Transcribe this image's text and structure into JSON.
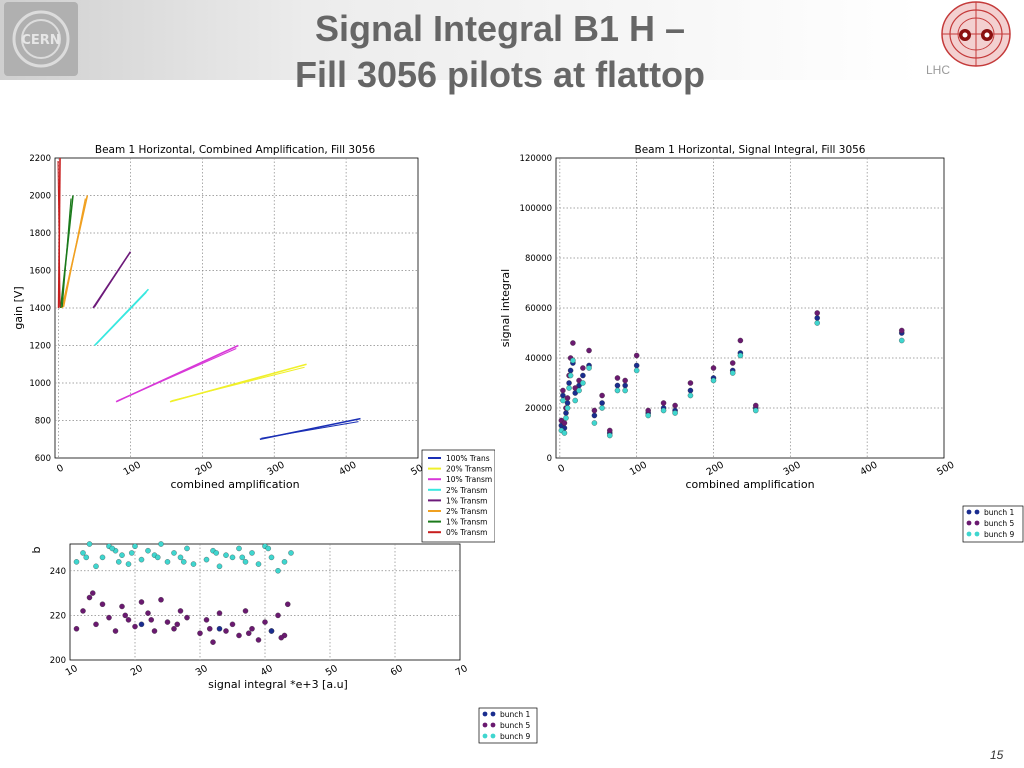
{
  "slide": {
    "title_line1": "Signal Integral B1 H –",
    "title_line2": "Fill 3056 pilots at flattop",
    "page_number": "15",
    "logos": {
      "left": "CERN",
      "right": "LHC"
    }
  },
  "colors": {
    "bunch1": "#1a2d8f",
    "bunch5": "#6a1a70",
    "bunch9": "#3fd6cf",
    "tr100": "#1a2fb5",
    "tr20": "#f0f02a",
    "tr10": "#d838d8",
    "tr2": "#38e8e0",
    "tr1": "#6d1a7a",
    "tr2b": "#f0a020",
    "tr1b": "#1b7a1b",
    "tr0": "#c81e1e"
  },
  "chart_data": [
    {
      "id": "gain-vs-amplification",
      "type": "line",
      "title": "Beam 1 Horizontal, Combined Amplification, Fill 3056",
      "xlabel": "combined amplification",
      "ylabel": "gain [V]",
      "xlim": [
        -5,
        500
      ],
      "ylim": [
        600,
        2200
      ],
      "xticks": [
        "0",
        "100",
        "200",
        "300",
        "400",
        "500"
      ],
      "yticks": [
        "600",
        "800",
        "1000",
        "1200",
        "1400",
        "1600",
        "1800",
        "2000",
        "2200"
      ],
      "legend": [
        "100% Trans",
        "20% Transm",
        "10% Transm",
        "2% Transm",
        "1% Transm",
        "2% Transm",
        "1% Transm",
        "0% Transm"
      ],
      "series": [
        {
          "name": "100% Trans",
          "color_key": "tr100",
          "x": [
            280,
            420
          ],
          "y": [
            700,
            810
          ]
        },
        {
          "name": "20% Transm",
          "color_key": "tr20",
          "x": [
            155,
            345
          ],
          "y": [
            900,
            1100
          ]
        },
        {
          "name": "10% Transm",
          "color_key": "tr10",
          "x": [
            80,
            250
          ],
          "y": [
            900,
            1200
          ]
        },
        {
          "name": "2% Transm",
          "color_key": "tr2",
          "x": [
            50,
            125
          ],
          "y": [
            1200,
            1500
          ]
        },
        {
          "name": "1% Transm",
          "color_key": "tr1",
          "x": [
            48,
            100
          ],
          "y": [
            1400,
            1700
          ]
        },
        {
          "name": "2% Transm",
          "color_key": "tr2b",
          "x": [
            5,
            40
          ],
          "y": [
            1400,
            2000
          ]
        },
        {
          "name": "1% Transm",
          "color_key": "tr1b",
          "x": [
            3,
            20
          ],
          "y": [
            1400,
            2000
          ]
        },
        {
          "name": "0% Transm",
          "color_key": "tr0",
          "x": [
            0,
            2
          ],
          "y": [
            1400,
            2200
          ]
        }
      ]
    },
    {
      "id": "signal-integral-vs-amplification",
      "type": "scatter",
      "title": "Beam 1 Horizontal, Signal Integral, Fill 3056",
      "xlabel": "combined amplification",
      "ylabel": "signal integral",
      "xlim": [
        -5,
        500
      ],
      "ylim": [
        0,
        120000
      ],
      "xticks": [
        "0",
        "100",
        "200",
        "300",
        "400",
        "500"
      ],
      "yticks": [
        "0",
        "20000",
        "40000",
        "60000",
        "80000",
        "100000",
        "120000"
      ],
      "legend": [
        "bunch 1",
        "bunch 5",
        "bunch 9"
      ],
      "x": [
        2,
        4,
        6,
        8,
        10,
        12,
        14,
        17,
        20,
        25,
        30,
        38,
        45,
        55,
        65,
        75,
        85,
        100,
        115,
        135,
        150,
        170,
        200,
        225,
        235,
        255,
        335,
        445
      ],
      "series": [
        {
          "name": "bunch 1",
          "color_key": "bunch1",
          "values": [
            13000,
            25000,
            12000,
            18000,
            22000,
            30000,
            35000,
            38000,
            26000,
            29000,
            33000,
            37000,
            17000,
            22000,
            10000,
            29000,
            29000,
            37000,
            18000,
            20000,
            19000,
            27000,
            32000,
            35000,
            42000,
            20000,
            56000,
            50000
          ]
        },
        {
          "name": "bunch 5",
          "color_key": "bunch5",
          "values": [
            15000,
            27000,
            14000,
            20000,
            24000,
            33000,
            40000,
            46000,
            28000,
            31000,
            36000,
            43000,
            19000,
            25000,
            11000,
            32000,
            31000,
            41000,
            19000,
            22000,
            21000,
            30000,
            36000,
            38000,
            47000,
            21000,
            58000,
            51000
          ]
        },
        {
          "name": "bunch 9",
          "color_key": "bunch9",
          "values": [
            11000,
            23000,
            10000,
            16000,
            20000,
            28000,
            33000,
            39000,
            23000,
            27000,
            30000,
            36000,
            14000,
            20000,
            9000,
            27000,
            27000,
            35000,
            17000,
            19000,
            18000,
            25000,
            31000,
            34000,
            41000,
            19000,
            54000,
            47000
          ]
        }
      ]
    },
    {
      "id": "bottom-scatter",
      "type": "scatter",
      "title": "",
      "xlabel": "signal integral *e+3 [a.u]",
      "ylabel": "b",
      "xlim": [
        10,
        70
      ],
      "ylim": [
        200,
        252
      ],
      "xticks": [
        "10",
        "20",
        "30",
        "40",
        "50",
        "60",
        "70"
      ],
      "yticks": [
        "200",
        "220",
        "240"
      ],
      "legend": [
        "bunch 1",
        "bunch 5",
        "bunch 9"
      ],
      "series": [
        {
          "name": "bunch 9",
          "color_key": "bunch9",
          "x": [
            11,
            12,
            13,
            14,
            15,
            16,
            17,
            17.5,
            18,
            19,
            20,
            21,
            22,
            23,
            24,
            25,
            26,
            27,
            28,
            29,
            31,
            32,
            33,
            34,
            35,
            36,
            37,
            38,
            39,
            40,
            41,
            42,
            43,
            44,
            12.5,
            16.5,
            19.5,
            23.5,
            27.5,
            32.5,
            36.5,
            40.5
          ],
          "y": [
            244,
            248,
            252,
            242,
            246,
            251,
            249,
            244,
            247,
            243,
            251,
            245,
            249,
            247,
            252,
            244,
            248,
            246,
            250,
            243,
            245,
            249,
            242,
            247,
            246,
            250,
            244,
            248,
            243,
            251,
            246,
            240,
            244,
            248,
            246,
            250,
            248,
            246,
            244,
            248,
            246,
            250
          ]
        },
        {
          "name": "bunch 5",
          "color_key": "bunch5",
          "x": [
            11,
            12,
            13,
            14,
            15,
            16,
            17,
            18,
            19,
            20,
            21,
            22,
            23,
            24,
            25,
            26,
            27,
            28,
            30,
            31,
            32,
            33,
            34,
            35,
            36,
            37,
            38,
            39,
            40,
            41,
            42,
            43,
            43.5,
            13.5,
            18.5,
            22.5,
            26.5,
            31.5,
            37.5,
            42.5
          ],
          "y": [
            214,
            222,
            228,
            216,
            225,
            219,
            213,
            224,
            218,
            215,
            226,
            221,
            213,
            227,
            217,
            214,
            222,
            219,
            212,
            218,
            208,
            221,
            213,
            216,
            211,
            222,
            214,
            209,
            217,
            213,
            220,
            211,
            225,
            230,
            220,
            218,
            216,
            214,
            212,
            210
          ]
        },
        {
          "name": "bunch 1",
          "color_key": "bunch1",
          "x": [
            21,
            33,
            41
          ],
          "y": [
            216,
            214,
            213
          ]
        }
      ]
    }
  ]
}
